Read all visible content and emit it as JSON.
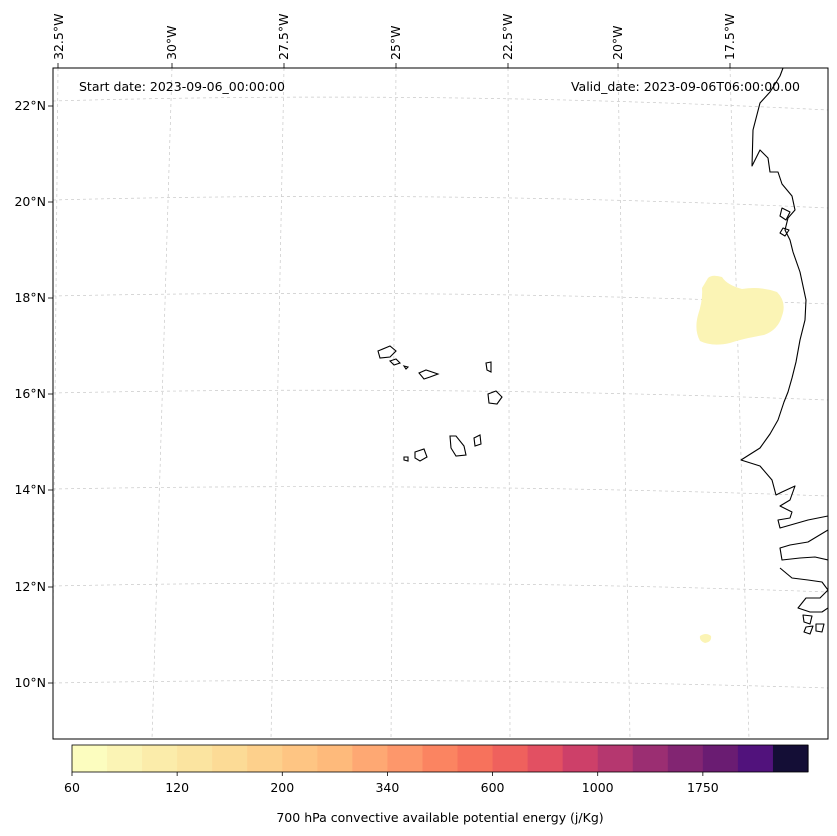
{
  "header": {
    "start_date": "Start date: 2023-09-06_00:00:00",
    "valid_date": "Valid_date: 2023-09-06T06:00:00.00"
  },
  "map": {
    "lon_labels": [
      "32.5°W",
      "30°W",
      "27.5°W",
      "25°W",
      "22.5°W",
      "20°W",
      "17.5°W"
    ],
    "lat_labels": [
      "22°N",
      "20°N",
      "18°N",
      "16°N",
      "14°N",
      "12°N",
      "10°N"
    ],
    "lon_range": [
      -33.5,
      -15.0
    ],
    "lat_range": [
      8.9,
      22.8
    ],
    "field": "700 hPa convective available potential energy",
    "features": [
      "coastline-west-africa",
      "cape-verde-islands",
      "cape-shaded-area"
    ]
  },
  "colorbar": {
    "label": "700 hPa convective available potential energy (j/Kg)",
    "tick_labels": [
      "60",
      "120",
      "200",
      "340",
      "600",
      "1000",
      "1750"
    ],
    "colors": [
      "#fcfdbf",
      "#fbf4b5",
      "#fbecaa",
      "#fbe4a0",
      "#fcdb96",
      "#fdd08c",
      "#fec583",
      "#feba7b",
      "#fea873",
      "#fd976b",
      "#fb8461",
      "#f7725c",
      "#ef615d",
      "#e25062",
      "#cd4069",
      "#b5376f",
      "#9b2e72",
      "#822572",
      "#6a1c72",
      "#51127c",
      "#140e36"
    ],
    "shaded_color": "#fbf4b5"
  }
}
